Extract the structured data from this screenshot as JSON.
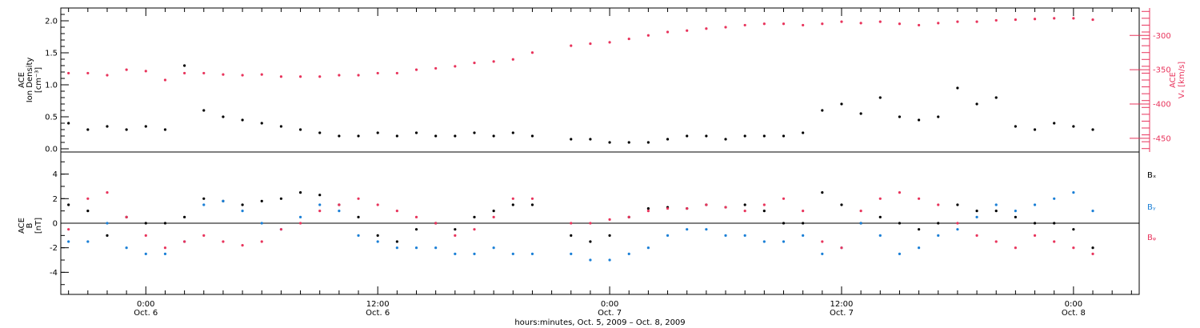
{
  "colors": {
    "black": "#000000",
    "pink": "#e8345c",
    "blue": "#1a7fd6"
  },
  "xaxis": {
    "title": "hours:minutes, Oct. 5, 2009 – Oct. 8, 2009",
    "tick_times": [
      "0:00",
      "12:00",
      "0:00",
      "12:00",
      "0:00"
    ],
    "tick_dates": [
      "Oct. 6",
      "Oct. 6",
      "Oct. 7",
      "Oct. 7",
      "Oct. 8"
    ]
  },
  "chart_data": [
    {
      "type": "scatter",
      "title": "",
      "x_unit": "hours from Oct. 5, 2009 0:00",
      "xlim": [
        19.6,
        75.4
      ],
      "left_axis": {
        "label_line1": "ACE",
        "label_line2": "Ion Density",
        "label_units": "[cm⁻³]",
        "ylim": [
          -0.05,
          2.2
        ],
        "ticks": [
          "0.0",
          "0.5",
          "1.0",
          "1.5",
          "2.0"
        ],
        "tick_values": [
          0.0,
          0.5,
          1.0,
          1.5,
          2.0
        ]
      },
      "right_axis": {
        "label": "Vₓ ACE [km/s]",
        "label_top": "ACE",
        "label_main": "Vₓ [km/s]",
        "ylim": [
          -470,
          -260
        ],
        "ticks": [
          "-300",
          "-350",
          "-400",
          "-450"
        ],
        "tick_values": [
          -300,
          -350,
          -400,
          -450
        ]
      },
      "series": [
        {
          "name": "Ion Density",
          "color": "#000000",
          "axis": "left",
          "x": [
            20,
            21,
            22,
            23,
            24,
            25,
            26,
            27,
            28,
            29,
            30,
            31,
            32,
            33,
            34,
            35,
            36,
            37,
            38,
            39,
            40,
            41,
            42,
            43,
            44,
            46,
            47,
            48,
            49,
            50,
            51,
            52,
            53,
            54,
            55,
            56,
            57,
            58,
            59,
            60,
            61,
            62,
            63,
            64,
            65,
            66,
            67,
            68,
            69,
            70,
            71,
            72,
            73
          ],
          "y": [
            0.4,
            0.3,
            0.35,
            0.3,
            0.35,
            0.3,
            1.3,
            0.6,
            0.5,
            0.45,
            0.4,
            0.35,
            0.3,
            0.25,
            0.2,
            0.2,
            0.25,
            0.2,
            0.25,
            0.2,
            0.2,
            0.25,
            0.2,
            0.25,
            0.2,
            0.15,
            0.15,
            0.1,
            0.1,
            0.1,
            0.15,
            0.2,
            0.2,
            0.15,
            0.2,
            0.2,
            0.2,
            0.25,
            0.6,
            0.7,
            0.55,
            0.8,
            0.5,
            0.45,
            0.5,
            0.95,
            0.7,
            0.8,
            0.35,
            0.3,
            0.4,
            0.35,
            0.3
          ]
        },
        {
          "name": "Vx",
          "color": "#e8345c",
          "axis": "right",
          "x": [
            20,
            21,
            22,
            23,
            24,
            25,
            26,
            27,
            28,
            29,
            30,
            31,
            32,
            33,
            34,
            35,
            36,
            37,
            38,
            39,
            40,
            41,
            42,
            43,
            44,
            46,
            47,
            48,
            49,
            50,
            51,
            52,
            53,
            54,
            55,
            56,
            57,
            58,
            59,
            60,
            61,
            62,
            63,
            64,
            65,
            66,
            67,
            68,
            69,
            70,
            71,
            72,
            73
          ],
          "y": [
            -355,
            -355,
            -358,
            -350,
            -352,
            -365,
            -355,
            -355,
            -357,
            -358,
            -357,
            -360,
            -360,
            -360,
            -358,
            -358,
            -355,
            -355,
            -350,
            -348,
            -345,
            -340,
            -338,
            -335,
            -325,
            -315,
            -312,
            -310,
            -305,
            -300,
            -295,
            -293,
            -290,
            -288,
            -285,
            -283,
            -283,
            -285,
            -283,
            -280,
            -282,
            -280,
            -283,
            -285,
            -282,
            -280,
            -280,
            -278,
            -277,
            -276,
            -275,
            -275,
            -277
          ]
        }
      ]
    },
    {
      "type": "scatter",
      "title": "",
      "x_unit": "hours from Oct. 5, 2009 0:00",
      "xlim": [
        19.6,
        75.4
      ],
      "left_axis": {
        "label_line1": "ACE",
        "label_line2": "B",
        "label_units": "[nT]",
        "ylim": [
          -5.8,
          5.8
        ],
        "ticks": [
          "4",
          "2",
          "0",
          "-2",
          "-4"
        ],
        "tick_values": [
          4,
          2,
          0,
          -2,
          -4
        ]
      },
      "legend": [
        {
          "text": "Bₓ",
          "color": "#000000"
        },
        {
          "text": "Bᵧ",
          "color": "#1a7fd6"
        },
        {
          "text": "Bᵩ",
          "color": "#e8345c"
        }
      ],
      "series": [
        {
          "name": "Bx",
          "color": "#000000",
          "x": [
            20,
            21,
            22,
            23,
            24,
            25,
            26,
            27,
            28,
            29,
            30,
            31,
            32,
            33,
            34,
            35,
            36,
            37,
            38,
            39,
            40,
            41,
            42,
            43,
            44,
            46,
            47,
            48,
            49,
            50,
            51,
            52,
            53,
            54,
            55,
            56,
            57,
            58,
            59,
            60,
            61,
            62,
            63,
            64,
            65,
            66,
            67,
            68,
            69,
            70,
            71,
            72,
            73
          ],
          "y": [
            1.5,
            1.0,
            -1.0,
            0.5,
            0.0,
            0.0,
            0.5,
            2.0,
            1.8,
            1.5,
            1.8,
            2.0,
            2.5,
            2.3,
            1.5,
            0.5,
            -1.0,
            -1.5,
            -0.5,
            0.0,
            -0.5,
            0.5,
            1.0,
            1.5,
            1.5,
            -1.0,
            -1.5,
            -1.0,
            0.5,
            1.2,
            1.3,
            1.2,
            1.5,
            1.3,
            1.5,
            1.0,
            0.0,
            0.0,
            2.5,
            1.5,
            0.0,
            0.5,
            0.0,
            -0.5,
            0.0,
            1.5,
            1.0,
            1.0,
            0.5,
            0.0,
            0.0,
            -0.5,
            -2.0
          ]
        },
        {
          "name": "By",
          "color": "#1a7fd6",
          "x": [
            20,
            21,
            22,
            23,
            24,
            25,
            26,
            27,
            28,
            29,
            30,
            31,
            32,
            33,
            34,
            35,
            36,
            37,
            38,
            39,
            40,
            41,
            42,
            43,
            44,
            46,
            47,
            48,
            49,
            50,
            51,
            52,
            53,
            54,
            55,
            56,
            57,
            58,
            59,
            60,
            61,
            62,
            63,
            64,
            65,
            66,
            67,
            68,
            69,
            70,
            71,
            72,
            73
          ],
          "y": [
            -1.5,
            -1.5,
            0.0,
            -2.0,
            -2.5,
            -2.5,
            -1.5,
            1.5,
            1.8,
            1.0,
            0.0,
            -0.5,
            0.5,
            1.5,
            1.0,
            -1.0,
            -1.5,
            -2.0,
            -2.0,
            -2.0,
            -2.5,
            -2.5,
            -2.0,
            -2.5,
            -2.5,
            -2.5,
            -3.0,
            -3.0,
            -2.5,
            -2.0,
            -1.0,
            -0.5,
            -0.5,
            -1.0,
            -1.0,
            -1.5,
            -1.5,
            -1.0,
            -2.5,
            -2.0,
            0.0,
            -1.0,
            -2.5,
            -2.0,
            -1.0,
            -0.5,
            0.5,
            1.5,
            1.0,
            1.5,
            2.0,
            2.5,
            1.0
          ]
        },
        {
          "name": "Bz",
          "color": "#e8345c",
          "x": [
            20,
            21,
            22,
            23,
            24,
            25,
            26,
            27,
            28,
            29,
            30,
            31,
            32,
            33,
            34,
            35,
            36,
            37,
            38,
            39,
            40,
            41,
            42,
            43,
            44,
            46,
            47,
            48,
            49,
            50,
            51,
            52,
            53,
            54,
            55,
            56,
            57,
            58,
            59,
            60,
            61,
            62,
            63,
            64,
            65,
            66,
            67,
            68,
            69,
            70,
            71,
            72,
            73
          ],
          "y": [
            -0.5,
            2.0,
            2.5,
            0.5,
            -1.0,
            -2.0,
            -1.5,
            -1.0,
            -1.5,
            -1.8,
            -1.5,
            -0.5,
            0.0,
            1.0,
            1.5,
            2.0,
            1.5,
            1.0,
            0.5,
            0.0,
            -1.0,
            -0.5,
            0.5,
            2.0,
            2.0,
            0.0,
            0.0,
            0.3,
            0.5,
            1.0,
            1.2,
            1.2,
            1.5,
            1.3,
            1.0,
            1.5,
            2.0,
            1.0,
            -1.5,
            -2.0,
            1.0,
            2.0,
            2.5,
            2.0,
            1.5,
            0.0,
            -1.0,
            -1.5,
            -2.0,
            -1.0,
            -1.5,
            -2.0,
            -2.5
          ]
        }
      ]
    }
  ]
}
